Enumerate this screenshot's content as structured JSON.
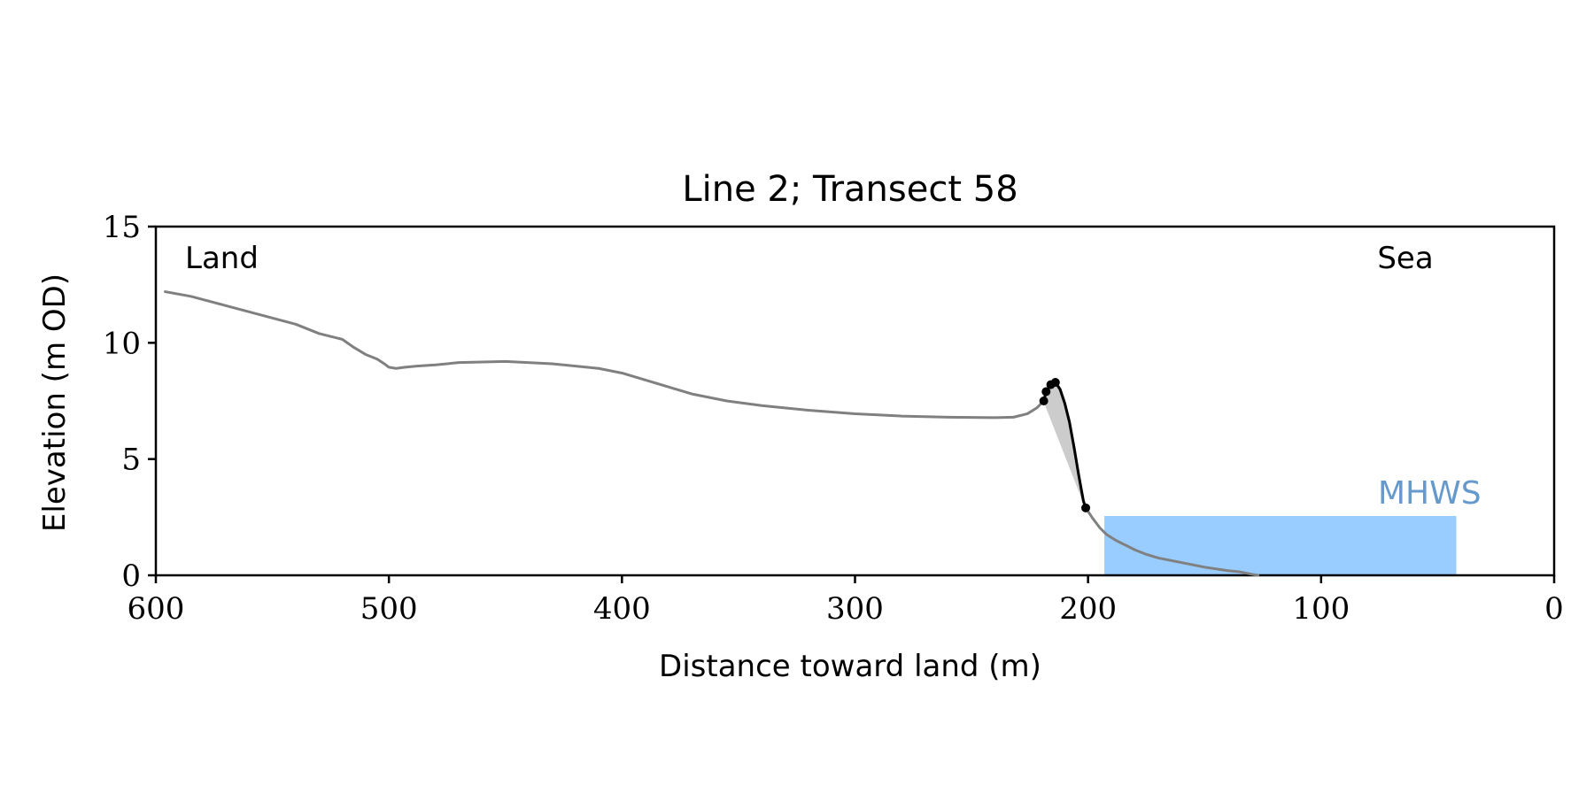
{
  "chart_data": {
    "type": "line",
    "title": "Line 2; Transect 58",
    "xlabel": "Distance toward land (m)",
    "ylabel": "Elevation (m OD)",
    "x_reversed": true,
    "xlim": [
      600,
      0
    ],
    "ylim": [
      0,
      15
    ],
    "xticks": [
      600,
      500,
      400,
      300,
      200,
      100,
      0
    ],
    "yticks": [
      0,
      5,
      10,
      15
    ],
    "grid": false,
    "annotations": {
      "left": "Land",
      "right": "Sea",
      "water": "MHWS"
    },
    "colors": {
      "profile": "#808080",
      "cliff": "#000000",
      "fill": "#cccccc",
      "water": "#99ccff",
      "water_label": "#6699cc",
      "axis": "#000000"
    },
    "water": {
      "x_start": 193,
      "x_end": 42,
      "elevation": 2.55
    },
    "series": [
      {
        "role": "profile",
        "x": [
          596,
          585,
          570,
          555,
          540,
          530,
          520,
          515,
          510,
          505,
          502,
          500,
          497,
          493,
          488,
          480,
          470,
          450,
          430,
          410,
          400,
          390,
          380,
          370,
          355,
          340,
          320,
          300,
          280,
          260,
          240,
          232,
          226,
          222,
          219,
          218,
          216,
          214,
          212,
          210,
          208,
          206,
          204,
          202,
          201,
          198,
          195,
          192,
          188,
          185,
          180,
          175,
          170,
          160,
          150,
          140,
          135,
          130,
          127
        ],
        "y": [
          12.2,
          12.0,
          11.6,
          11.2,
          10.8,
          10.4,
          10.15,
          9.8,
          9.5,
          9.3,
          9.1,
          8.95,
          8.9,
          8.95,
          9.0,
          9.05,
          9.15,
          9.2,
          9.1,
          8.9,
          8.7,
          8.4,
          8.1,
          7.8,
          7.5,
          7.3,
          7.1,
          6.95,
          6.85,
          6.8,
          6.78,
          6.8,
          6.95,
          7.2,
          7.5,
          7.9,
          8.2,
          8.3,
          8.0,
          7.4,
          6.6,
          5.5,
          4.3,
          3.2,
          2.9,
          2.45,
          2.05,
          1.75,
          1.5,
          1.35,
          1.1,
          0.9,
          0.75,
          0.55,
          0.35,
          0.2,
          0.15,
          0.05,
          0.0
        ]
      },
      {
        "role": "cliff",
        "x": [
          219,
          218,
          216,
          214,
          212,
          210,
          208,
          206,
          204,
          202,
          201
        ],
        "y": [
          7.5,
          7.9,
          8.2,
          8.3,
          8.0,
          7.4,
          6.6,
          5.5,
          4.3,
          3.2,
          2.9
        ]
      }
    ],
    "markers": [
      {
        "x": 219,
        "y": 7.5
      },
      {
        "x": 218,
        "y": 7.9
      },
      {
        "x": 216,
        "y": 8.2
      },
      {
        "x": 214,
        "y": 8.3
      },
      {
        "x": 201,
        "y": 2.9
      }
    ]
  }
}
